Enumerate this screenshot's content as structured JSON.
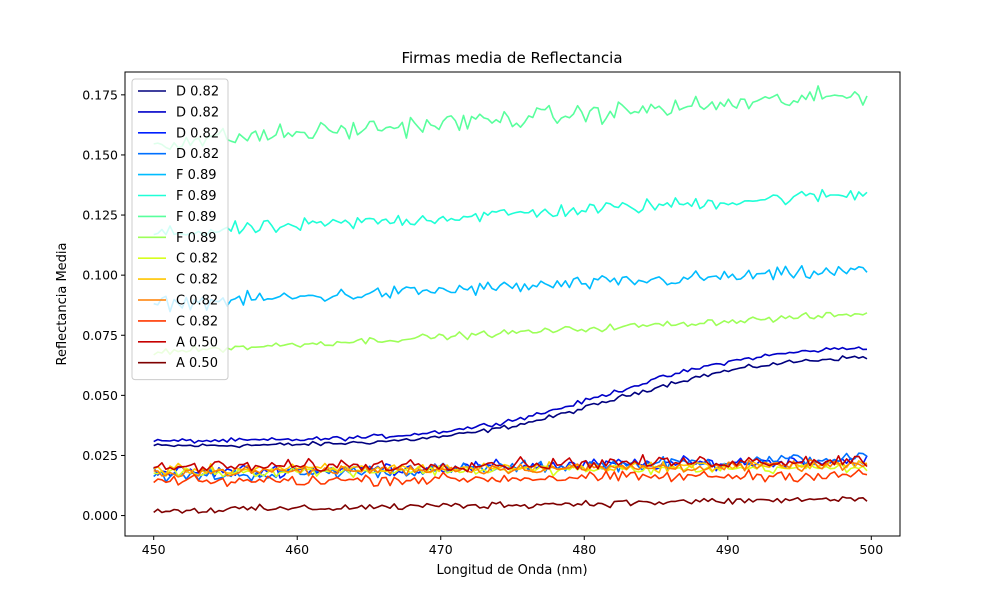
{
  "chart_data": {
    "type": "line",
    "title": "Firmas media de Reflectancia",
    "xlabel": "Longitud de Onda (nm)",
    "ylabel": "Reflectancia Media",
    "xlim": [
      448,
      502
    ],
    "ylim": [
      -0.0085,
      0.1845
    ],
    "xticks": [
      450,
      460,
      470,
      480,
      490,
      500
    ],
    "yticks": [
      0.0,
      0.025,
      0.05,
      0.075,
      0.1,
      0.125,
      0.15,
      0.175
    ],
    "ytick_labels": [
      "0.000",
      "0.025",
      "0.050",
      "0.075",
      "0.100",
      "0.125",
      "0.150",
      "0.175"
    ],
    "grid": false,
    "legend_position": "upper-left",
    "x_range": [
      450,
      499.7
    ],
    "n_points": 176,
    "series": [
      {
        "name": "D 0.82",
        "color": "#00007f",
        "start": 0.029,
        "end": 0.066,
        "shape": "sigmoid",
        "noise": 0.0008
      },
      {
        "name": "D 0.82",
        "color": "#0000c8",
        "start": 0.031,
        "end": 0.07,
        "shape": "sigmoid",
        "noise": 0.0008
      },
      {
        "name": "D 0.82",
        "color": "#0020ff",
        "start": 0.018,
        "end": 0.023,
        "shape": "flat",
        "noise": 0.0022
      },
      {
        "name": "D 0.82",
        "color": "#0070ff",
        "start": 0.016,
        "end": 0.024,
        "shape": "flat",
        "noise": 0.0022
      },
      {
        "name": "F 0.89",
        "color": "#00bcff",
        "start": 0.088,
        "end": 0.102,
        "shape": "linear",
        "noise": 0.0025
      },
      {
        "name": "F 0.89",
        "color": "#1fffd7",
        "start": 0.117,
        "end": 0.134,
        "shape": "linear",
        "noise": 0.0025
      },
      {
        "name": "F 0.89",
        "color": "#59ff9d",
        "start": 0.155,
        "end": 0.175,
        "shape": "linear",
        "noise": 0.0035
      },
      {
        "name": "F 0.89",
        "color": "#9dff59",
        "start": 0.068,
        "end": 0.084,
        "shape": "linear",
        "noise": 0.0012
      },
      {
        "name": "C 0.82",
        "color": "#d7ff1f",
        "start": 0.018,
        "end": 0.02,
        "shape": "flat",
        "noise": 0.0018
      },
      {
        "name": "C 0.82",
        "color": "#ffc600",
        "start": 0.019,
        "end": 0.021,
        "shape": "flat",
        "noise": 0.0018
      },
      {
        "name": "C 0.82",
        "color": "#ff7e00",
        "start": 0.018,
        "end": 0.021,
        "shape": "flat",
        "noise": 0.0018
      },
      {
        "name": "C 0.82",
        "color": "#ff3800",
        "start": 0.014,
        "end": 0.017,
        "shape": "flat",
        "noise": 0.002
      },
      {
        "name": "A 0.50",
        "color": "#c60000",
        "start": 0.02,
        "end": 0.023,
        "shape": "flat",
        "noise": 0.0022
      },
      {
        "name": "A 0.50",
        "color": "#7f0000",
        "start": 0.002,
        "end": 0.007,
        "shape": "flat",
        "noise": 0.0013
      }
    ]
  }
}
